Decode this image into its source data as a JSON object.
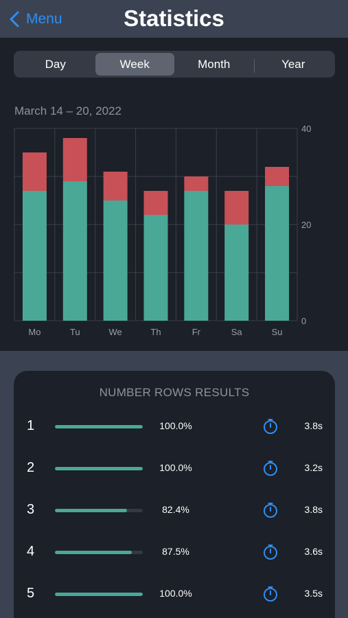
{
  "nav": {
    "back_label": "Menu",
    "title": "Statistics"
  },
  "segments": [
    {
      "label": "Day",
      "active": false
    },
    {
      "label": "Week",
      "active": true
    },
    {
      "label": "Month",
      "active": false
    },
    {
      "label": "Year",
      "active": false
    }
  ],
  "chart": {
    "date_range": "March 14 – 20, 2022"
  },
  "chart_data": {
    "type": "bar",
    "stacked": true,
    "categories": [
      "Mo",
      "Tu",
      "We",
      "Th",
      "Fr",
      "Sa",
      "Su"
    ],
    "series": [
      {
        "color": "#4aa897",
        "values": [
          27,
          29,
          25,
          22,
          27,
          20,
          28
        ]
      },
      {
        "color": "#c75156",
        "values": [
          8,
          9,
          6,
          5,
          3,
          7,
          4
        ]
      }
    ],
    "ylim": [
      0,
      40
    ],
    "y_ticks": [
      0,
      20,
      40
    ],
    "grid": true,
    "y_axis_side": "right"
  },
  "results": {
    "title": "NUMBER ROWS  RESULTS",
    "rows": [
      {
        "number": "1",
        "percent_value": 100.0,
        "percent": "100.0%",
        "time": "3.8s",
        "icon": "stopwatch-icon"
      },
      {
        "number": "2",
        "percent_value": 100.0,
        "percent": "100.0%",
        "time": "3.2s",
        "icon": "stopwatch-icon"
      },
      {
        "number": "3",
        "percent_value": 82.4,
        "percent": "82.4%",
        "time": "3.8s",
        "icon": "stopwatch-icon"
      },
      {
        "number": "4",
        "percent_value": 87.5,
        "percent": "87.5%",
        "time": "3.6s",
        "icon": "stopwatch-icon"
      },
      {
        "number": "5",
        "percent_value": 100.0,
        "percent": "100.0%",
        "time": "3.5s",
        "icon": "stopwatch-icon"
      }
    ]
  },
  "colors": {
    "accent_blue": "#2f8ef3",
    "bar_green": "#4aa897",
    "bar_red": "#c75156",
    "panel_bg": "#1c2028",
    "page_bg": "#3b4352"
  }
}
